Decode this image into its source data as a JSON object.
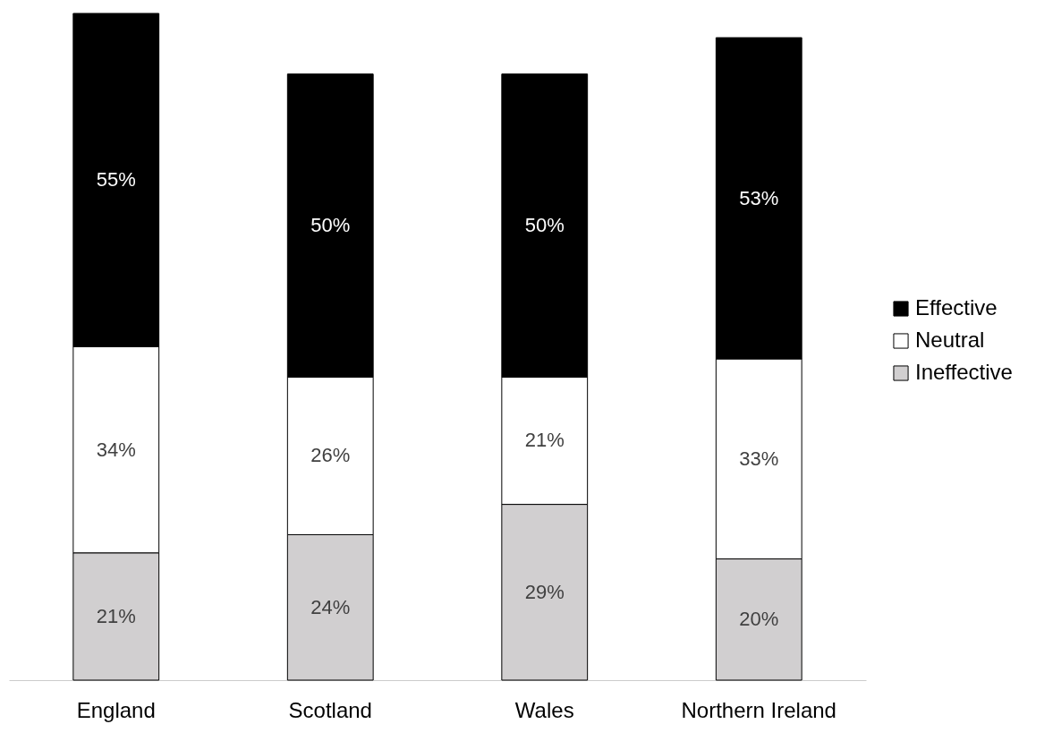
{
  "chart_data": {
    "type": "bar",
    "stacked": true,
    "categories": [
      "England",
      "Scotland",
      "Wales",
      "Northern Ireland"
    ],
    "series": [
      {
        "name": "Ineffective",
        "color": "#d1cfd0",
        "values": [
          21,
          24,
          29,
          20
        ],
        "value_labels": [
          "21%",
          "24%",
          "29%",
          "20%"
        ]
      },
      {
        "name": "Neutral",
        "color": "#ffffff",
        "values": [
          34,
          26,
          21,
          33
        ],
        "value_labels": [
          "34%",
          "26%",
          "21%",
          "33%"
        ]
      },
      {
        "name": "Effective",
        "color": "#000000",
        "values": [
          55,
          50,
          50,
          53
        ],
        "value_labels": [
          "55%",
          "50%",
          "50%",
          "53%"
        ]
      }
    ],
    "legend": "right",
    "grid": false
  }
}
